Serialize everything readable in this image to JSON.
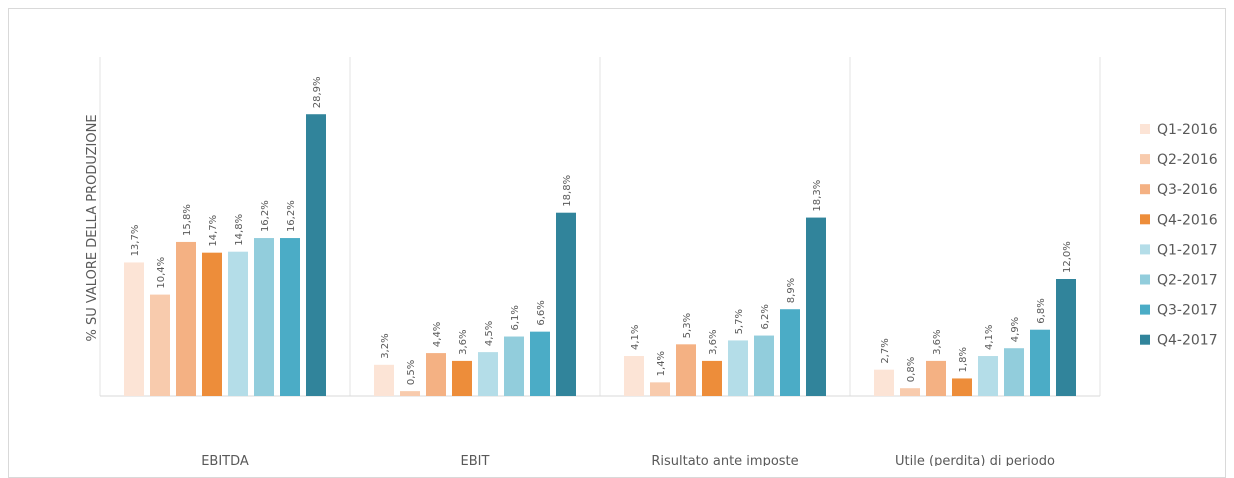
{
  "chart_data": {
    "type": "bar",
    "title": "",
    "ylabel": "% SU VALORE DELLA PRODUZIONE",
    "xlabel": "",
    "ylim": [
      0,
      30
    ],
    "grid": false,
    "legend_position": "right",
    "categories": [
      "EBITDA",
      "EBIT",
      "Risultato ante imposte",
      "Utile (perdita) di periodo"
    ],
    "series": [
      {
        "name": "Q1-2016",
        "color": "#fce4d6",
        "values": [
          13.7,
          3.2,
          4.1,
          2.7
        ],
        "labels": [
          "13,7%",
          "3,2%",
          "4,1%",
          "2,7%"
        ]
      },
      {
        "name": "Q2-2016",
        "color": "#f8cbad",
        "values": [
          10.4,
          0.5,
          1.4,
          0.8
        ],
        "labels": [
          "10,4%",
          "0,5%",
          "1,4%",
          "0,8%"
        ]
      },
      {
        "name": "Q3-2016",
        "color": "#f4b183",
        "values": [
          15.8,
          4.4,
          5.3,
          3.6
        ],
        "labels": [
          "15,8%",
          "4,4%",
          "5,3%",
          "3,6%"
        ]
      },
      {
        "name": "Q4-2016",
        "color": "#ed8d3a",
        "values": [
          14.7,
          3.6,
          3.6,
          1.8
        ],
        "labels": [
          "14,7%",
          "3,6%",
          "3,6%",
          "1,8%"
        ]
      },
      {
        "name": "Q1-2017",
        "color": "#b4dde8",
        "values": [
          14.8,
          4.5,
          5.7,
          4.1
        ],
        "labels": [
          "14,8%",
          "4,5%",
          "5,7%",
          "4,1%"
        ]
      },
      {
        "name": "Q2-2017",
        "color": "#92cddc",
        "values": [
          16.2,
          6.1,
          6.2,
          4.9
        ],
        "labels": [
          "16,2%",
          "6,1%",
          "6,2%",
          "4,9%"
        ]
      },
      {
        "name": "Q3-2017",
        "color": "#4bacc6",
        "values": [
          16.2,
          6.6,
          8.9,
          6.8
        ],
        "labels": [
          "16,2%",
          "6,6%",
          "8,9%",
          "6,8%"
        ]
      },
      {
        "name": "Q4-2017",
        "color": "#31849b",
        "values": [
          28.9,
          18.8,
          18.3,
          12.0
        ],
        "labels": [
          "28,9%",
          "18,8%",
          "18,3%",
          "12,0%"
        ]
      }
    ]
  }
}
